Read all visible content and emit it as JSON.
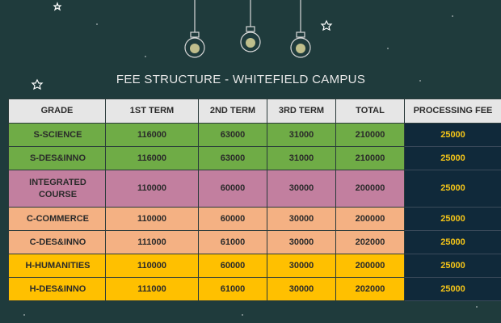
{
  "title": "FEE STRUCTURE - WHITEFIELD CAMPUS",
  "table": {
    "header": [
      "GRADE",
      "1ST TERM",
      "2ND TERM",
      "3RD TERM",
      "TOTAL",
      "PROCESSING FEE"
    ],
    "rows": [
      [
        "S-SCIENCE",
        "116000",
        "63000",
        "31000",
        "210000",
        "25000"
      ],
      [
        "S-DES&INNO",
        "116000",
        "63000",
        "31000",
        "210000",
        "25000"
      ],
      [
        "INTEGRATED COURSE",
        "110000",
        "60000",
        "30000",
        "200000",
        "25000"
      ],
      [
        "C-COMMERCE",
        "110000",
        "60000",
        "30000",
        "200000",
        "25000"
      ],
      [
        "C-DES&INNO",
        "111000",
        "61000",
        "30000",
        "202000",
        "25000"
      ],
      [
        "H-HUMANITIES",
        "110000",
        "60000",
        "30000",
        "200000",
        "25000"
      ],
      [
        "H-DES&INNO",
        "111000",
        "61000",
        "30000",
        "202000",
        "25000"
      ]
    ]
  }
}
